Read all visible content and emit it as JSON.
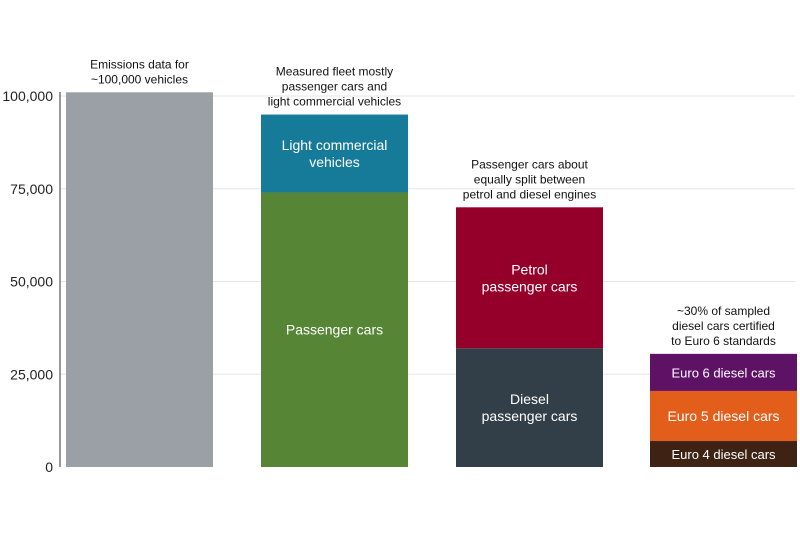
{
  "chart_data": {
    "type": "bar",
    "stacked": true,
    "ylim": [
      0,
      100000
    ],
    "yticks": [
      {
        "value": 0,
        "label": "0"
      },
      {
        "value": 25000,
        "label": "25,000"
      },
      {
        "value": 50000,
        "label": "50,000"
      },
      {
        "value": 75000,
        "label": "75,000"
      },
      {
        "value": 100000,
        "label": "100,000"
      }
    ],
    "grid": true,
    "bars": [
      {
        "annotation": [
          "Emissions data for",
          "~100,000 vehicles"
        ],
        "segments": [
          {
            "label": [],
            "value": 101000,
            "color": "#9aa0a6"
          }
        ]
      },
      {
        "annotation": [
          "Measured fleet mostly",
          "passenger cars and",
          "light commercial vehicles"
        ],
        "segments": [
          {
            "label": [
              "Passenger cars"
            ],
            "value": 74000,
            "color": "#568536"
          },
          {
            "label": [
              "Light commercial",
              "vehicles"
            ],
            "value": 21000,
            "color": "#167a99"
          }
        ]
      },
      {
        "annotation": [
          "Passenger cars about",
          "equally split between",
          "petrol and diesel engines"
        ],
        "segments": [
          {
            "label": [
              "Diesel",
              "passenger cars"
            ],
            "value": 32000,
            "color": "#333f48"
          },
          {
            "label": [
              "Petrol",
              "passenger cars"
            ],
            "value": 38000,
            "color": "#95002b"
          }
        ]
      },
      {
        "annotation": [
          "~30% of sampled",
          "diesel cars certified",
          "to Euro 6 standards"
        ],
        "segments": [
          {
            "label": [
              "Euro 4 diesel cars"
            ],
            "value": 7000,
            "color": "#3e2314"
          },
          {
            "label": [
              "Euro 5 diesel cars"
            ],
            "value": 13500,
            "color": "#e35d1b"
          },
          {
            "label": [
              "Euro 6 diesel cars"
            ],
            "value": 10000,
            "color": "#5e1266"
          }
        ]
      }
    ]
  }
}
